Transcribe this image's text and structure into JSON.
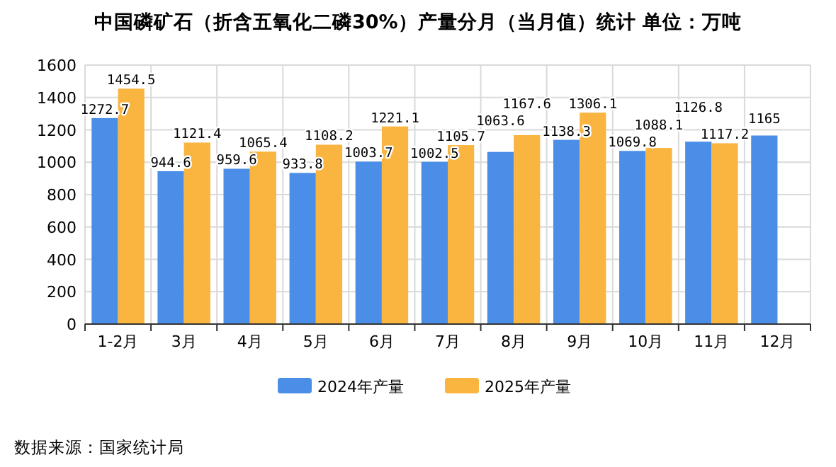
{
  "chart_data": {
    "type": "bar",
    "title": "中国磷矿石（折含五氧化二磷30%）产量分月（当月值）统计 单位：万吨",
    "categories": [
      "1-2月",
      "3月",
      "4月",
      "5月",
      "6月",
      "7月",
      "8月",
      "9月",
      "10月",
      "11月",
      "12月"
    ],
    "series": [
      {
        "name": "2024年产量",
        "color": "#4a8ee8",
        "values": [
          1272.7,
          944.6,
          959.6,
          933.8,
          1003.7,
          1002.5,
          1063.6,
          1138.3,
          1069.8,
          1126.8,
          1165
        ]
      },
      {
        "name": "2025年产量",
        "color": "#f9b540",
        "values": [
          1454.5,
          1121.4,
          1065.4,
          1108.2,
          1221.1,
          1105.7,
          1167.6,
          1306.1,
          1088.1,
          1117.2,
          null
        ]
      }
    ],
    "ylim": [
      0,
      1600
    ],
    "yticks": [
      0,
      200,
      400,
      600,
      800,
      1000,
      1200,
      1400,
      1600
    ],
    "grid": true,
    "legend": "bottom",
    "data_labels": true,
    "annotations": [
      "数据来源：国家统计局"
    ]
  }
}
